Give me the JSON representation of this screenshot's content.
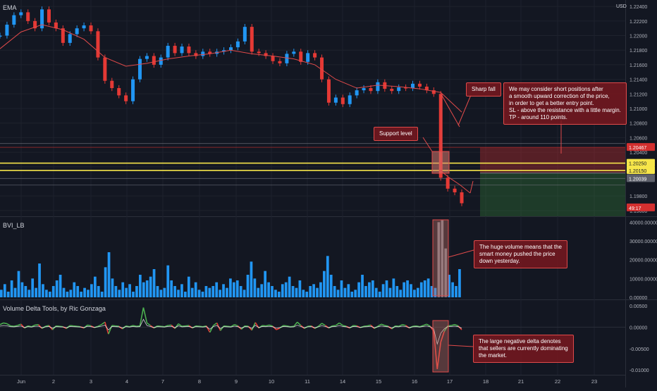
{
  "panes": {
    "main_label": "EMA",
    "volume_label": "BVI_LB",
    "delta_label": "Volume Delta Tools, by Ric Gonzaga",
    "currency": "USD"
  },
  "annotations": [
    {
      "id": "support",
      "text": "Support level"
    },
    {
      "id": "sharpfall",
      "text": "Sharp fall"
    },
    {
      "id": "idea",
      "text": "We may consider short positions after\na smooth upward correction of the price,\nin order to get a better entry point.\nSL - above the resistance with a little margin.\nTP - around 110 points."
    },
    {
      "id": "volume",
      "text": "The huge volume means that the\nsmart money pushed the price\ndown yesterday."
    },
    {
      "id": "delta",
      "text": "The large negative delta denotes\nthat sellers are currently dominating\nthe market."
    }
  ],
  "price_tags": [
    {
      "value": "1.20467",
      "color": "#d32f2f",
      "text_color": "#ffffff"
    },
    {
      "value": "1.20250",
      "color": "#f7e64a",
      "text_color": "#131722"
    },
    {
      "value": "1.20150",
      "color": "#f7e64a",
      "text_color": "#131722"
    },
    {
      "value": "1.20039",
      "color": "#5d606b",
      "text_color": "#ffffff"
    },
    {
      "value": "49:17",
      "color": "#d32f2f",
      "text_color": "#ffffff"
    }
  ],
  "chart_data": [
    {
      "type": "line",
      "pane": "price",
      "y_axis_ticks": [
        "1.22400",
        "1.22200",
        "1.22000",
        "1.21800",
        "1.21600",
        "1.21400",
        "1.21200",
        "1.21000",
        "1.20800",
        "1.20600",
        "1.20400",
        "1.20200",
        "1.19800",
        "1.19600"
      ],
      "ylim": [
        1.1955,
        1.2245
      ],
      "x_ticks": [
        "Jun",
        "2",
        "3",
        "4",
        "7",
        "8",
        "9",
        "10",
        "11",
        "14",
        "15",
        "16",
        "17",
        "18",
        "21",
        "22",
        "23"
      ],
      "series": [
        {
          "name": "EMA",
          "color": "#e04a4a",
          "x": [
            0,
            3,
            6,
            9,
            12,
            15,
            18,
            21,
            24,
            27,
            30,
            33,
            36,
            39,
            42,
            45,
            48,
            51,
            54,
            57,
            60,
            63,
            66
          ],
          "y": [
            1.2182,
            1.2205,
            1.2215,
            1.2208,
            1.2195,
            1.217,
            1.2158,
            1.2162,
            1.2168,
            1.2172,
            1.2175,
            1.218,
            1.2175,
            1.2172,
            1.2168,
            1.216,
            1.214,
            1.2128,
            1.2132,
            1.213,
            1.2127,
            1.2122,
            1.2095
          ]
        },
        {
          "name": "",
          "color": "#2196f3",
          "x": [
            0,
            1,
            2,
            3,
            4,
            5,
            6,
            7,
            8,
            9,
            10,
            11,
            12,
            13,
            14,
            15,
            16,
            17,
            18,
            19,
            20,
            21,
            22,
            23,
            24,
            25,
            26,
            27,
            28,
            29,
            30,
            31,
            32,
            33,
            34,
            35,
            36,
            37,
            38,
            39,
            40,
            41,
            42,
            43,
            44,
            45,
            46,
            47,
            48,
            49,
            50,
            51,
            52,
            53,
            54,
            55,
            56,
            57,
            58,
            59,
            60,
            61,
            62,
            63,
            64,
            65,
            66
          ],
          "y": [
            1.22,
            1.2215,
            1.2228,
            1.2232,
            1.222,
            1.221,
            1.2236,
            1.2218,
            1.221,
            1.219,
            1.2202,
            1.221,
            1.2214,
            1.2206,
            1.217,
            1.2138,
            1.2128,
            1.2118,
            1.211,
            1.214,
            1.2168,
            1.2172,
            1.216,
            1.217,
            1.2186,
            1.2176,
            1.2185,
            1.2176,
            1.2172,
            1.2178,
            1.2175,
            1.2178,
            1.218,
            1.2184,
            1.2192,
            1.2212,
            1.2178,
            1.2176,
            1.2172,
            1.2165,
            1.2162,
            1.2175,
            1.2178,
            1.2164,
            1.2176,
            1.217,
            1.214,
            1.2108,
            1.2115,
            1.2106,
            1.2118,
            1.2125,
            1.2128,
            1.2124,
            1.2136,
            1.2127,
            1.2124,
            1.2129,
            1.2128,
            1.2134,
            1.213,
            1.2125,
            1.212,
            1.2005,
            1.199,
            1.1985,
            1.197
          ]
        }
      ],
      "levels": [
        {
          "label": "1.20467",
          "value": 1.20467,
          "color": "#d32f2f"
        },
        {
          "label": "1.20250",
          "value": 1.2025,
          "color": "#f7e64a"
        },
        {
          "label": "1.20150",
          "value": 1.2015,
          "color": "#f7e64a"
        },
        {
          "label": "1.20039",
          "value": 1.20039,
          "color": "#787b86"
        }
      ],
      "position": {
        "type": "short",
        "entry": 1.2025,
        "stop": 1.20467,
        "target": 1.1915
      }
    },
    {
      "type": "bar",
      "pane": "volume",
      "y_axis_ticks": [
        "40000.00000",
        "30000.00000",
        "20000.00000",
        "10000.00000",
        "0.00000"
      ],
      "ylim": [
        0,
        42000
      ],
      "color": "#2196f3",
      "values": [
        4000,
        7000,
        3000,
        9000,
        5000,
        14000,
        8000,
        6000,
        4000,
        10000,
        5000,
        18000,
        7000,
        4000,
        3000,
        6000,
        9000,
        12000,
        5000,
        3000,
        4000,
        8000,
        6000,
        3000,
        5000,
        4000,
        7000,
        11000,
        6000,
        3000,
        16000,
        24000,
        10000,
        6000,
        4000,
        8000,
        5000,
        7000,
        3000,
        6000,
        12000,
        8000,
        9000,
        11000,
        15000,
        6000,
        4000,
        5000,
        17000,
        9000,
        6000,
        4000,
        7000,
        3000,
        11000,
        5000,
        8000,
        4000,
        3000,
        6000,
        5000,
        6000,
        8000,
        4000,
        7000,
        5000,
        10000,
        8000,
        9000,
        6000,
        4000,
        12000,
        19000,
        10000,
        5000,
        7000,
        14000,
        8000,
        6000,
        4000,
        3000,
        7000,
        8000,
        11000,
        6000,
        5000,
        9000,
        4000,
        3000,
        6000,
        7000,
        5000,
        8000,
        14000,
        22000,
        12000,
        6000,
        4000,
        9000,
        5000,
        7000,
        3000,
        4000,
        8000,
        12000,
        6000,
        8000,
        9000,
        5000,
        3000,
        7000,
        9000,
        5000,
        10000,
        6000,
        4000,
        8000,
        9000,
        7000,
        4000,
        5000,
        8000,
        9000,
        10000,
        6000,
        5000,
        40000,
        41000,
        26000,
        12000,
        8000,
        6000,
        15000
      ]
    },
    {
      "type": "line",
      "pane": "delta",
      "y_axis_ticks": [
        "0.00500",
        "0.00000",
        "-0.00500",
        "-0.01000"
      ],
      "ylim": [
        -0.0108,
        0.006
      ],
      "series": [
        {
          "name": "",
          "color": "#4caf50"
        },
        {
          "name": "",
          "color": "#e53935"
        }
      ],
      "values": [
        0.0006,
        0.001,
        0.0008,
        0.0003,
        0.0002,
        0.0004,
        0.0007,
        -0.0002,
        0.0003,
        0.0001,
        0.0005,
        0.0006,
        -0.0003,
        0.0002,
        0.0004,
        -0.0006,
        0.0003,
        0.0002,
        0.0001,
        -0.0003,
        0.0004,
        0.0003,
        0.0002,
        0.0001,
        -0.0002,
        0.0005,
        0.0003,
        -0.0001,
        0.0002,
        0.0006,
        0.0012,
        -0.0016,
        0.0004,
        0.0003,
        0.0002,
        -0.0004,
        0.0003,
        0.0001,
        0.0004,
        0.0002,
        0.0003,
        0.0046,
        0.001,
        0.0004,
        -0.0002,
        0.0003,
        0.0002,
        0.0001,
        0.0004,
        0.0005,
        -0.0003,
        0.0008,
        0.0002,
        0.0003,
        0.0004,
        -0.0002,
        0.0003,
        0.0002,
        0.0001,
        0.0003,
        -0.0012,
        0.0004,
        0.001,
        -0.0008,
        0.0003,
        0.0002,
        0.0001,
        0.0006,
        0.0003,
        -0.0005,
        0.0003,
        0.0002,
        -0.0007,
        0.0011,
        -0.0002,
        0.0004,
        0.0003,
        0.0005,
        0.0002,
        -0.0006,
        -0.0002,
        0.0004,
        0.0003,
        0.0001,
        0.0002,
        0.0012,
        0.0004,
        -0.0003,
        0.0002,
        0.0003,
        -0.0003,
        0.0002,
        0.0009,
        0.0004,
        -0.0002,
        0.0003,
        0.0004,
        0.001,
        0.0004,
        0.0002,
        -0.0002,
        0.0004,
        0.0003,
        -0.0001,
        0.0002,
        0.0003,
        0.0005,
        -0.0003,
        0.0002,
        0.0007,
        0.0004,
        0.0002,
        -0.0004,
        0.0003,
        0.0002,
        0.0006,
        0.0004,
        -0.0002,
        0.0002,
        0.0003,
        0.0001,
        0.0004,
        0.0007,
        0.0002,
        -0.001,
        -0.0098,
        -0.0035,
        -0.001,
        0.0003,
        0.0004,
        0.0006,
        0.0003,
        -0.0006
      ]
    }
  ],
  "x_axis": {
    "labels": [
      "Jun",
      "2",
      "3",
      "4",
      "7",
      "8",
      "9",
      "10",
      "11",
      "14",
      "15",
      "16",
      "17",
      "18",
      "21",
      "22",
      "23"
    ]
  }
}
